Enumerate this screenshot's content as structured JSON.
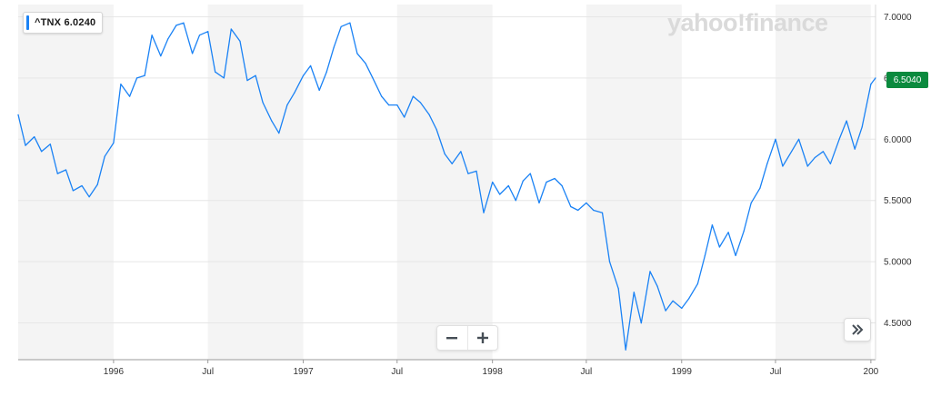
{
  "legend": {
    "label": "^TNX 6.0240"
  },
  "watermark": {
    "text": "yahoo!finance"
  },
  "last_price_badge": {
    "text": "6.5040"
  },
  "controls": {
    "zoom_out_icon": "minus-icon",
    "zoom_in_icon": "plus-icon",
    "scroll_icon": "double-chevron-right-icon"
  },
  "colors": {
    "line": "#1a82f5",
    "band": "#f4f4f4",
    "grid": "#e6e6e6",
    "badge": "#0b8a3e"
  },
  "chart_data": {
    "type": "line",
    "series": [
      {
        "x": [
          "1995-07-01",
          "1995-07-15",
          "1995-08-01",
          "1995-08-15",
          "1995-09-01",
          "1995-09-15",
          "1995-10-01",
          "1995-10-15",
          "1995-11-01",
          "1995-11-15",
          "1995-12-01",
          "1995-12-15",
          "1996-01-01",
          "1996-01-15",
          "1996-02-01",
          "1996-02-15",
          "1996-03-01",
          "1996-03-15",
          "1996-04-01",
          "1996-04-15",
          "1996-05-01",
          "1996-05-15",
          "1996-06-01",
          "1996-06-15",
          "1996-07-01",
          "1996-07-15",
          "1996-08-01",
          "1996-08-15",
          "1996-09-01",
          "1996-09-15",
          "1996-10-01",
          "1996-10-15",
          "1996-11-01",
          "1996-11-15",
          "1996-12-01",
          "1996-12-15",
          "1997-01-01",
          "1997-01-15",
          "1997-02-01",
          "1997-02-15",
          "1997-03-01",
          "1997-03-15",
          "1997-04-01",
          "1997-04-15",
          "1997-05-01",
          "1997-05-15",
          "1997-06-01",
          "1997-06-15",
          "1997-07-01",
          "1997-07-15",
          "1997-08-01",
          "1997-08-15",
          "1997-09-01",
          "1997-09-15",
          "1997-10-01",
          "1997-10-15",
          "1997-11-01",
          "1997-11-15",
          "1997-12-01",
          "1997-12-15",
          "1998-01-01",
          "1998-01-15",
          "1998-02-01",
          "1998-02-15",
          "1998-03-01",
          "1998-03-15",
          "1998-04-01",
          "1998-04-15",
          "1998-05-01",
          "1998-05-15",
          "1998-06-01",
          "1998-06-15",
          "1998-07-01",
          "1998-07-15",
          "1998-08-01",
          "1998-08-15",
          "1998-09-01",
          "1998-09-15",
          "1998-10-01",
          "1998-10-15",
          "1998-11-01",
          "1998-11-15",
          "1998-12-01",
          "1998-12-15",
          "1999-01-01",
          "1999-01-15",
          "1999-02-01",
          "1999-02-15",
          "1999-03-01",
          "1999-03-15",
          "1999-04-01",
          "1999-04-15",
          "1999-05-01",
          "1999-05-15",
          "1999-06-01",
          "1999-06-15",
          "1999-07-01",
          "1999-07-15",
          "1999-08-01",
          "1999-08-15",
          "1999-09-01",
          "1999-09-15",
          "1999-10-01",
          "1999-10-15",
          "1999-11-01",
          "1999-11-15",
          "1999-12-01",
          "1999-12-15",
          "2000-01-01",
          "2000-01-10"
        ],
        "values": [
          6.2,
          5.95,
          6.02,
          5.9,
          5.96,
          5.72,
          5.75,
          5.58,
          5.62,
          5.53,
          5.63,
          5.86,
          5.97,
          6.45,
          6.35,
          6.5,
          6.52,
          6.85,
          6.68,
          6.82,
          6.93,
          6.95,
          6.7,
          6.85,
          6.88,
          6.55,
          6.5,
          6.9,
          6.8,
          6.48,
          6.52,
          6.3,
          6.15,
          6.05,
          6.28,
          6.38,
          6.52,
          6.6,
          6.4,
          6.55,
          6.75,
          6.92,
          6.95,
          6.7,
          6.62,
          6.5,
          6.35,
          6.28,
          6.28,
          6.18,
          6.35,
          6.3,
          6.2,
          6.08,
          5.88,
          5.8,
          5.9,
          5.72,
          5.74,
          5.4,
          5.65,
          5.55,
          5.62,
          5.5,
          5.66,
          5.72,
          5.48,
          5.65,
          5.68,
          5.62,
          5.45,
          5.42,
          5.48,
          5.42,
          5.4,
          5.0,
          4.78,
          4.28,
          4.75,
          4.5,
          4.92,
          4.8,
          4.6,
          4.68,
          4.62,
          4.7,
          4.82,
          5.05,
          5.3,
          5.12,
          5.24,
          5.05,
          5.25,
          5.48,
          5.6,
          5.8,
          6.0,
          5.78,
          5.9,
          6.0,
          5.78,
          5.85,
          5.9,
          5.8,
          6.0,
          6.15,
          5.92,
          6.1,
          6.45,
          6.5
        ]
      }
    ],
    "x_ticks": [
      "1996",
      "Jul",
      "1997",
      "Jul",
      "1998",
      "Jul",
      "1999",
      "Jul",
      "200"
    ],
    "y_ticks": [
      "7.0000",
      "6.5000",
      "6.0000",
      "5.5000",
      "5.0000",
      "4.5000"
    ],
    "ylim": [
      4.2,
      7.1
    ],
    "xlim": [
      "1995-07-01",
      "2000-01-10"
    ],
    "grid": true,
    "legend_position": "top-left"
  }
}
